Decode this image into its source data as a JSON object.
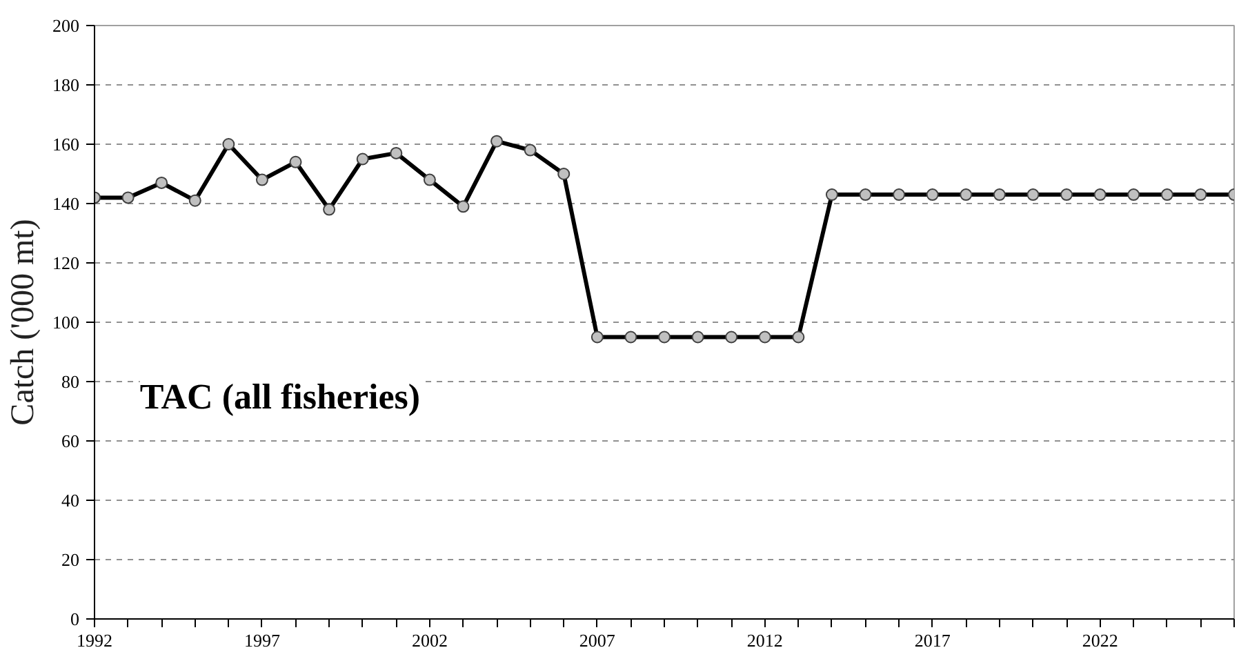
{
  "chart_data": {
    "type": "line",
    "ylabel": "Catch ('000 mt)",
    "x": [
      1992,
      1993,
      1994,
      1995,
      1996,
      1997,
      1998,
      1999,
      2000,
      2001,
      2002,
      2003,
      2004,
      2005,
      2006,
      2007,
      2008,
      2009,
      2010,
      2011,
      2012,
      2013,
      2014,
      2015,
      2016,
      2017,
      2018,
      2019,
      2020,
      2021,
      2022,
      2023,
      2024,
      2025,
      2026
    ],
    "series": [
      {
        "name": "TAC (all fisheries)",
        "color": "#000000",
        "values": [
          142,
          142,
          147,
          141,
          160,
          148,
          154,
          138,
          155,
          157,
          148,
          139,
          161,
          158,
          150,
          95,
          95,
          95,
          95,
          95,
          95,
          95,
          143,
          143,
          143,
          143,
          143,
          143,
          143,
          143,
          143,
          143,
          143,
          143,
          143
        ]
      }
    ],
    "xlim": [
      1992,
      2026
    ],
    "xticks": [
      1992,
      {
        "value": 1993,
        "label": null
      },
      {
        "value": 1994,
        "label": null
      },
      {
        "value": 1995,
        "label": null
      },
      {
        "value": 1996,
        "label": null
      },
      1997,
      {
        "value": 1998,
        "label": null
      },
      {
        "value": 1999,
        "label": null
      },
      {
        "value": 2000,
        "label": null
      },
      {
        "value": 2001,
        "label": null
      },
      2002,
      {
        "value": 2003,
        "label": null
      },
      {
        "value": 2004,
        "label": null
      },
      {
        "value": 2005,
        "label": null
      },
      {
        "value": 2006,
        "label": null
      },
      2007,
      {
        "value": 2008,
        "label": null
      },
      {
        "value": 2009,
        "label": null
      },
      {
        "value": 2010,
        "label": null
      },
      {
        "value": 2011,
        "label": null
      },
      2012,
      {
        "value": 2013,
        "label": null
      },
      {
        "value": 2014,
        "label": null
      },
      {
        "value": 2015,
        "label": null
      },
      {
        "value": 2016,
        "label": null
      },
      2017,
      {
        "value": 2018,
        "label": null
      },
      {
        "value": 2019,
        "label": null
      },
      {
        "value": 2020,
        "label": null
      },
      {
        "value": 2021,
        "label": null
      },
      2022,
      {
        "value": 2023,
        "label": null
      },
      {
        "value": 2024,
        "label": null
      },
      {
        "value": 2025,
        "label": null
      },
      {
        "value": 2026,
        "label": null
      }
    ],
    "ylim": [
      0,
      200
    ],
    "yticks": [
      0,
      20,
      40,
      60,
      80,
      100,
      120,
      140,
      160,
      180,
      200
    ],
    "grid": "y",
    "marker": "circle",
    "line_style": "solid",
    "legend": false
  }
}
